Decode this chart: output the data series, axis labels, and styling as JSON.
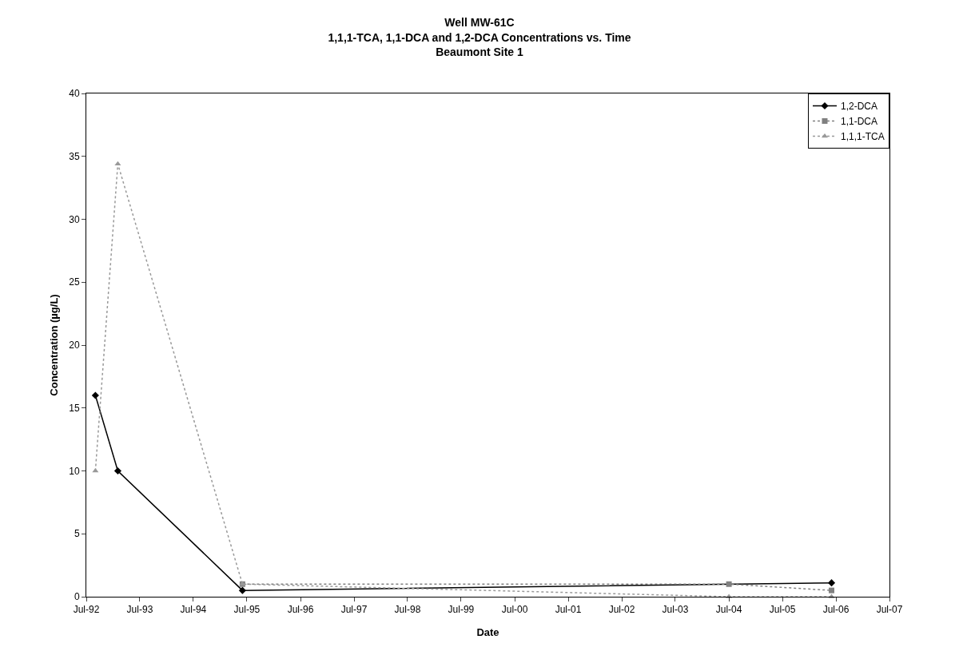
{
  "chart_data": {
    "type": "line",
    "title": "Well MW-61C",
    "subtitle": "1,1,1-TCA, 1,1-DCA and 1,2-DCA Concentrations vs. Time\nBeaumont Site 1",
    "xlabel": "Date",
    "ylabel": "Concentration (µg/L)",
    "series": [
      {
        "name": "1,2-DCA",
        "color": "#000000",
        "marker": "diamond",
        "line_style": "solid",
        "x": [
          "1992-09",
          "1993-02",
          "1995-06",
          "2006-06"
        ],
        "values": [
          16,
          10,
          0.5,
          1.1
        ]
      },
      {
        "name": "1,1-DCA",
        "color": "#808080",
        "marker": "square",
        "line_style": "dotted",
        "x": [
          "1995-06",
          "2004-07",
          "2006-06"
        ],
        "values": [
          1,
          1,
          0.5
        ]
      },
      {
        "name": "1,1,1-TCA",
        "color": "#999999",
        "marker": "triangle",
        "line_style": "dotted",
        "x": [
          "1992-09",
          "1993-02",
          "1995-06",
          "2004-07",
          "2006-06"
        ],
        "values": [
          10,
          34.4,
          1,
          0,
          0
        ]
      }
    ],
    "xlim": [
      "1992-07",
      "2007-07"
    ],
    "xticks": [
      {
        "value": "1992-07",
        "label": "Jul-92"
      },
      {
        "value": "1993-07",
        "label": "Jul-93"
      },
      {
        "value": "1994-07",
        "label": "Jul-94"
      },
      {
        "value": "1995-07",
        "label": "Jul-95"
      },
      {
        "value": "1996-07",
        "label": "Jul-96"
      },
      {
        "value": "1997-07",
        "label": "Jul-97"
      },
      {
        "value": "1998-07",
        "label": "Jul-98"
      },
      {
        "value": "1999-07",
        "label": "Jul-99"
      },
      {
        "value": "2000-07",
        "label": "Jul-00"
      },
      {
        "value": "2001-07",
        "label": "Jul-01"
      },
      {
        "value": "2002-07",
        "label": "Jul-02"
      },
      {
        "value": "2003-07",
        "label": "Jul-03"
      },
      {
        "value": "2004-07",
        "label": "Jul-04"
      },
      {
        "value": "2005-07",
        "label": "Jul-05"
      },
      {
        "value": "2006-07",
        "label": "Jul-06"
      },
      {
        "value": "2007-07",
        "label": "Jul-07"
      }
    ],
    "ylim": [
      0,
      40
    ],
    "yticks": [
      0,
      5,
      10,
      15,
      20,
      25,
      30,
      35,
      40
    ],
    "grid": false,
    "legend": "top right"
  }
}
